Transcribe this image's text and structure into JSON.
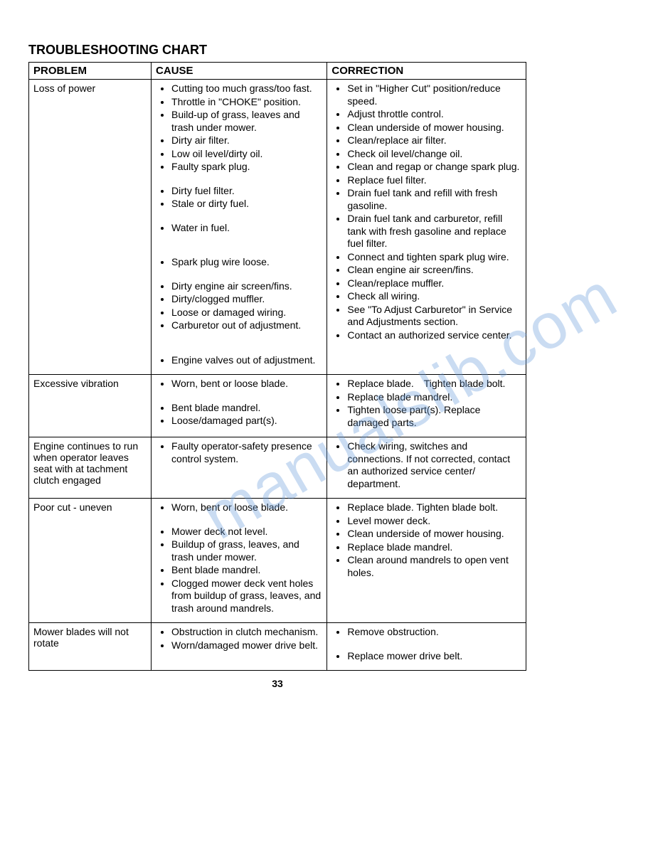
{
  "title": "TROUBLESHOOTING CHART",
  "headers": {
    "h1": "PROBLEM",
    "h2": "CAUSE",
    "h3": "CORRECTION"
  },
  "watermark": "manualslib.com",
  "pageNumber": "33",
  "rows": [
    {
      "problem": "Loss of power",
      "cause": [
        "Cutting too much grass/too fast.",
        "Throttle in \"CHOKE\" position.",
        "Build-up of grass, leaves and trash under mower.",
        "Dirty air filter.",
        "Low oil level/dirty oil.",
        "Faulty spark plug.",
        "",
        "Dirty fuel filter.",
        "Stale or dirty fuel.",
        "",
        "Water in fuel.",
        "",
        "",
        "Spark plug wire loose.",
        "",
        "Dirty engine air screen/fins.",
        "Dirty/clogged muffler.",
        "Loose or damaged wiring.",
        "Carburetor out of adjustment.",
        "",
        "",
        "Engine valves out of adjustment."
      ],
      "correction": [
        "Set in \"Higher Cut\" position/reduce speed.",
        "Adjust throttle control.",
        "Clean underside of mower housing.",
        "Clean/replace air filter.",
        "Check oil level/change oil.",
        "Clean and regap or change spark plug.",
        "Replace fuel filter.",
        "Drain fuel tank and refill with fresh gasoline.",
        "Drain fuel tank and carburetor, refill tank with fresh gasoline and replace fuel filter.",
        "Connect and tighten spark plug wire.",
        "Clean engine air screen/fins.",
        "Clean/replace muffler.",
        "Check all wiring.",
        "See \"To Adjust Carburetor\" in Service and Adjustments section.",
        "Contact an authorized service center."
      ]
    },
    {
      "problem": "Excessive vibration",
      "cause": [
        "Worn, bent or loose blade.",
        "",
        "Bent blade mandrel.",
        "Loose/damaged part(s)."
      ],
      "correction": [
        "Replace blade. Tighten blade bolt.",
        "Replace blade mandrel.",
        "Tighten loose part(s). Replace damaged parts."
      ]
    },
    {
      "problem": "Engine continues to run when operator leaves seat with at tachment clutch engaged",
      "cause": [
        "Faulty operator-safety presence control system."
      ],
      "correction": [
        "Check wiring, switches and connections. If not corrected, contact an authorized service center/ department."
      ]
    },
    {
      "problem": "Poor cut - uneven",
      "cause": [
        "Worn, bent or loose blade.",
        "",
        "Mower deck not level.",
        "Buildup of grass, leaves, and trash under mower.",
        "Bent blade mandrel.",
        "Clogged mower deck vent holes from buildup of grass, leaves, and trash around mandrels."
      ],
      "correction": [
        "Replace blade. Tighten blade bolt.",
        "Level mower deck.",
        "Clean underside of mower housing.",
        "Replace blade mandrel.",
        "Clean around mandrels to open vent holes."
      ]
    },
    {
      "problem": "Mower blades will not rotate",
      "cause": [
        "Obstruction in clutch mechanism.",
        "Worn/damaged mower drive belt."
      ],
      "correction": [
        "Remove obstruction.",
        "",
        "Replace mower drive belt."
      ]
    }
  ]
}
